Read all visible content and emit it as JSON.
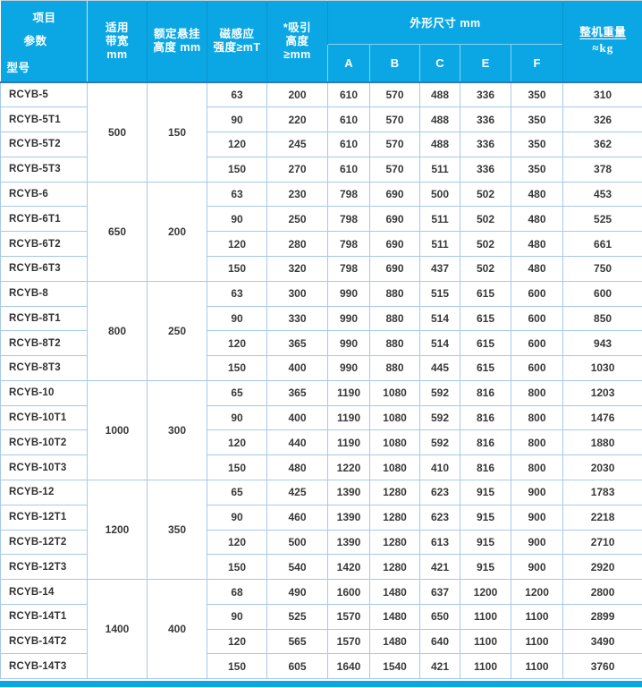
{
  "table": {
    "corner": {
      "line1": "项目",
      "line2": "参数",
      "line3": "型号"
    },
    "col_headers": {
      "bandwidth": [
        "适用",
        "带宽",
        "mm"
      ],
      "suspension": [
        "额定悬挂",
        "高度 mm"
      ],
      "magnetic": [
        "磁感应",
        "强度≥mT"
      ],
      "attraction": [
        "*吸引",
        "高度",
        "≥mm"
      ],
      "dimensions_group": "外形尺寸 mm",
      "dimension_cols": [
        "A",
        "B",
        "C",
        "E",
        "F"
      ],
      "weight_line1": "整机重量",
      "weight_line2": "≈kg"
    },
    "groups": [
      {
        "bandwidth": "500",
        "height": "150",
        "rows": [
          {
            "model": "RCYB-5",
            "values": [
              "63",
              "200",
              "610",
              "570",
              "488",
              "336",
              "350",
              "310"
            ]
          },
          {
            "model": "RCYB-5T1",
            "values": [
              "90",
              "220",
              "610",
              "570",
              "488",
              "336",
              "350",
              "326"
            ]
          },
          {
            "model": "RCYB-5T2",
            "values": [
              "120",
              "245",
              "610",
              "570",
              "488",
              "336",
              "350",
              "362"
            ]
          },
          {
            "model": "RCYB-5T3",
            "values": [
              "150",
              "270",
              "610",
              "570",
              "511",
              "336",
              "350",
              "378"
            ]
          }
        ]
      },
      {
        "bandwidth": "650",
        "height": "200",
        "rows": [
          {
            "model": "RCYB-6",
            "values": [
              "63",
              "230",
              "798",
              "690",
              "500",
              "502",
              "480",
              "453"
            ]
          },
          {
            "model": "RCYB-6T1",
            "values": [
              "90",
              "250",
              "798",
              "690",
              "511",
              "502",
              "480",
              "525"
            ]
          },
          {
            "model": "RCYB-6T2",
            "values": [
              "120",
              "280",
              "798",
              "690",
              "511",
              "502",
              "480",
              "661"
            ]
          },
          {
            "model": "RCYB-6T3",
            "values": [
              "150",
              "320",
              "798",
              "690",
              "437",
              "502",
              "480",
              "750"
            ]
          }
        ]
      },
      {
        "bandwidth": "800",
        "height": "250",
        "rows": [
          {
            "model": "RCYB-8",
            "values": [
              "63",
              "300",
              "990",
              "880",
              "515",
              "615",
              "600",
              "600"
            ]
          },
          {
            "model": "RCYB-8T1",
            "values": [
              "90",
              "330",
              "990",
              "880",
              "514",
              "615",
              "600",
              "850"
            ]
          },
          {
            "model": "RCYB-8T2",
            "values": [
              "120",
              "365",
              "990",
              "880",
              "514",
              "615",
              "600",
              "943"
            ]
          },
          {
            "model": "RCYB-8T3",
            "values": [
              "150",
              "400",
              "990",
              "880",
              "445",
              "615",
              "600",
              "1030"
            ]
          }
        ]
      },
      {
        "bandwidth": "1000",
        "height": "300",
        "rows": [
          {
            "model": "RCYB-10",
            "values": [
              "65",
              "365",
              "1190",
              "1080",
              "592",
              "816",
              "800",
              "1203"
            ]
          },
          {
            "model": "RCYB-10T1",
            "values": [
              "90",
              "400",
              "1190",
              "1080",
              "592",
              "816",
              "800",
              "1476"
            ]
          },
          {
            "model": "RCYB-10T2",
            "values": [
              "120",
              "440",
              "1190",
              "1080",
              "592",
              "816",
              "800",
              "1880"
            ]
          },
          {
            "model": "RCYB-10T3",
            "values": [
              "150",
              "480",
              "1220",
              "1080",
              "410",
              "816",
              "800",
              "2030"
            ]
          }
        ]
      },
      {
        "bandwidth": "1200",
        "height": "350",
        "rows": [
          {
            "model": "RCYB-12",
            "values": [
              "65",
              "425",
              "1390",
              "1280",
              "623",
              "915",
              "900",
              "1783"
            ]
          },
          {
            "model": "RCYB-12T1",
            "values": [
              "90",
              "460",
              "1390",
              "1280",
              "623",
              "915",
              "900",
              "2218"
            ]
          },
          {
            "model": "RCYB-12T2",
            "values": [
              "120",
              "500",
              "1390",
              "1280",
              "613",
              "915",
              "900",
              "2710"
            ]
          },
          {
            "model": "RCYB-12T3",
            "values": [
              "150",
              "540",
              "1420",
              "1280",
              "421",
              "915",
              "900",
              "2920"
            ]
          }
        ]
      },
      {
        "bandwidth": "1400",
        "height": "400",
        "rows": [
          {
            "model": "RCYB-14",
            "values": [
              "68",
              "490",
              "1600",
              "1480",
              "637",
              "1200",
              "1200",
              "2800"
            ]
          },
          {
            "model": "RCYB-14T1",
            "values": [
              "90",
              "525",
              "1570",
              "1480",
              "650",
              "1100",
              "1100",
              "2899"
            ]
          },
          {
            "model": "RCYB-14T2",
            "values": [
              "120",
              "565",
              "1570",
              "1480",
              "640",
              "1100",
              "1100",
              "3490"
            ]
          },
          {
            "model": "RCYB-14T3",
            "values": [
              "150",
              "605",
              "1640",
              "1540",
              "421",
              "1100",
              "1100",
              "3760"
            ]
          }
        ]
      }
    ]
  },
  "colors": {
    "header_bg": "#0AA7E4",
    "header_bottom_line": "#2E79BD",
    "data_border": "#A6C9E9",
    "text": "#383838"
  }
}
